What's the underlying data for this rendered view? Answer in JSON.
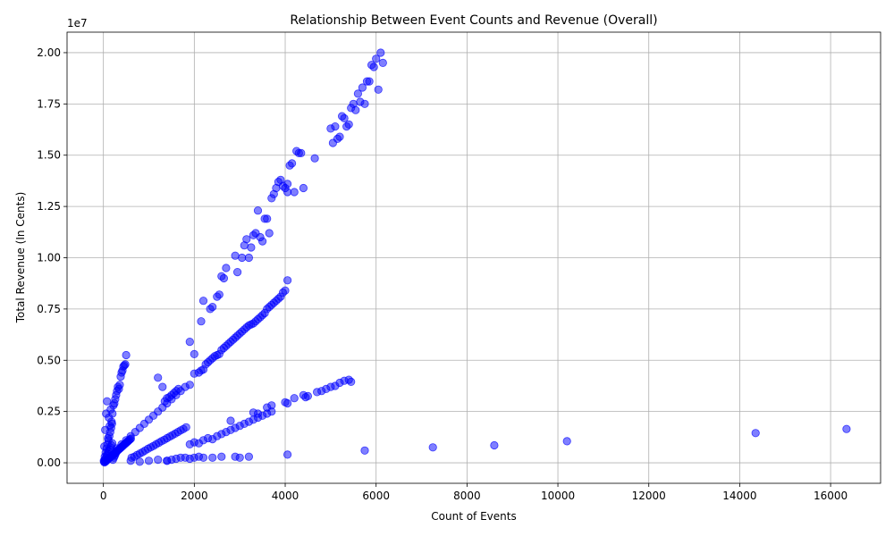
{
  "chart_data": {
    "type": "scatter",
    "title": "Relationship Between Event Counts and Revenue (Overall)",
    "xlabel": "Count of Events",
    "ylabel": "Total Revenue (In Cents)",
    "y_offset_text": "1e7",
    "xlim": [
      -800,
      17100
    ],
    "ylim": [
      -1000000,
      21000000
    ],
    "xticks": [
      0,
      2000,
      4000,
      6000,
      8000,
      10000,
      12000,
      14000,
      16000
    ],
    "xtick_labels": [
      "0",
      "2000",
      "4000",
      "6000",
      "8000",
      "10000",
      "12000",
      "14000",
      "16000"
    ],
    "yticks": [
      0,
      2500000,
      5000000,
      7500000,
      10000000,
      12500000,
      15000000,
      17500000,
      20000000
    ],
    "ytick_labels": [
      "0.00",
      "0.25",
      "0.50",
      "0.75",
      "1.00",
      "1.25",
      "1.50",
      "1.75",
      "2.00"
    ],
    "grid": true,
    "marker_color": "#0000ff",
    "marker_alpha": 0.5,
    "series": [
      {
        "x": [
          20,
          40,
          60,
          80,
          100,
          120,
          140,
          160,
          180,
          200,
          220,
          240,
          260,
          280,
          300,
          320,
          340,
          360,
          380,
          400,
          420,
          440,
          460,
          480,
          500,
          10,
          30,
          50,
          70,
          90,
          110,
          130,
          150,
          170,
          190,
          210,
          230,
          250,
          270,
          290,
          15,
          35,
          55,
          75,
          95,
          115,
          135,
          155,
          175,
          195,
          25,
          45,
          65,
          85,
          105,
          125,
          145,
          165,
          185,
          205,
          225,
          245,
          265,
          285,
          305,
          325,
          345,
          365,
          385,
          405,
          425,
          445,
          465,
          485,
          505,
          525,
          545,
          565,
          585,
          605,
          300,
          400,
          500,
          600,
          700,
          800,
          900,
          1000,
          1100,
          1200,
          1300,
          1400,
          1500,
          1600,
          1700,
          1800,
          620,
          680,
          740,
          800,
          860,
          920,
          980,
          1040,
          1100,
          1160,
          1220,
          1280,
          1340,
          1400,
          1460,
          1520,
          1580,
          1640,
          1700,
          1760,
          1820,
          1200,
          1300,
          1350,
          1400,
          1450,
          1500,
          1550,
          1600,
          1650,
          1900,
          2000,
          1900,
          2000,
          2100,
          2150,
          2200,
          2250,
          2300,
          2350,
          2400,
          2450,
          2500,
          2550,
          2600,
          2650,
          2700,
          2750,
          2800,
          2850,
          2900,
          2950,
          3000,
          3050,
          3100,
          3150,
          3200,
          3250,
          3300,
          3350,
          3400,
          3450,
          3500,
          3550,
          3600,
          3650,
          3700,
          3750,
          3800,
          3850,
          3900,
          3950,
          4000,
          4050,
          2150,
          2200,
          2350,
          2400,
          2500,
          2550,
          2600,
          2650,
          2700,
          2900,
          2950,
          3050,
          3100,
          3150,
          3200,
          3250,
          3300,
          3350,
          3400,
          3450,
          3500,
          3550,
          3600,
          3650,
          3700,
          3750,
          3800,
          3850,
          3900,
          3950,
          4000,
          4050,
          4100,
          4150,
          4200,
          4250,
          4300,
          4350,
          4400,
          5000,
          5050,
          5100,
          5150,
          5200,
          5250,
          5300,
          5350,
          5400,
          5450,
          5500,
          5550,
          5600,
          5650,
          5700,
          5750,
          5800,
          5850,
          5900,
          5950,
          6000,
          6050,
          6100,
          6150,
          4650,
          4050,
          2800,
          3300,
          3400,
          3600,
          3700,
          4000,
          4050,
          4200,
          4400,
          4450,
          4500,
          4700,
          4800,
          4900,
          5000,
          5100,
          5200,
          5300,
          5400,
          5450,
          1900,
          2000,
          2100,
          2200,
          2300,
          2400,
          2500,
          2600,
          2700,
          2800,
          2900,
          3000,
          3100,
          3200,
          3300,
          3400,
          3500,
          3600,
          3700,
          1400,
          1500,
          1600,
          1700,
          1800,
          1900,
          2000,
          2100,
          2200,
          2400,
          2600,
          2900,
          3000,
          3200,
          4050,
          5750,
          7250,
          8600,
          10200,
          14350,
          16350,
          600,
          800,
          1000,
          1200,
          1400
        ],
        "y": [
          800000,
          1600000,
          2400000,
          3000000,
          1200000,
          2200000,
          1800000,
          2600000,
          2000000,
          2400000,
          2800000,
          2900000,
          3100000,
          3300000,
          3500000,
          3700000,
          3600000,
          3800000,
          4200000,
          4400000,
          4500000,
          4700000,
          4750000,
          4800000,
          5250000,
          100000,
          300000,
          500000,
          700000,
          900000,
          1100000,
          1300000,
          1500000,
          1700000,
          1900000,
          150000,
          250000,
          350000,
          450000,
          550000,
          50000,
          150000,
          250000,
          350000,
          450000,
          550000,
          650000,
          750000,
          850000,
          950000,
          20000,
          60000,
          100000,
          140000,
          180000,
          220000,
          260000,
          300000,
          340000,
          380000,
          420000,
          460000,
          500000,
          540000,
          580000,
          620000,
          660000,
          700000,
          740000,
          780000,
          820000,
          860000,
          900000,
          940000,
          980000,
          1020000,
          1060000,
          1100000,
          1140000,
          1180000,
          700000,
          900000,
          1100000,
          1300000,
          1500000,
          1700000,
          1900000,
          2100000,
          2300000,
          2500000,
          2700000,
          2900000,
          3100000,
          3300000,
          3500000,
          3700000,
          250000,
          300000,
          380000,
          450000,
          520000,
          600000,
          680000,
          750000,
          820000,
          900000,
          980000,
          1050000,
          1120000,
          1200000,
          1280000,
          1350000,
          1420000,
          1500000,
          1580000,
          1650000,
          1730000,
          4150000,
          3700000,
          3000000,
          3150000,
          3200000,
          3300000,
          3400000,
          3500000,
          3600000,
          3800000,
          4350000,
          5900000,
          5300000,
          4400000,
          4500000,
          4550000,
          4800000,
          4900000,
          5000000,
          5100000,
          5200000,
          5250000,
          5300000,
          5500000,
          5600000,
          5700000,
          5800000,
          5900000,
          6000000,
          6100000,
          6200000,
          6300000,
          6400000,
          6500000,
          6600000,
          6700000,
          6750000,
          6800000,
          6900000,
          7000000,
          7100000,
          7200000,
          7300000,
          7500000,
          7600000,
          7700000,
          7800000,
          7900000,
          8000000,
          8100000,
          8300000,
          8400000,
          8900000,
          6900000,
          7900000,
          7500000,
          7600000,
          8100000,
          8200000,
          9100000,
          9000000,
          9500000,
          10100000,
          9300000,
          10000000,
          10600000,
          10900000,
          10000000,
          10500000,
          11100000,
          11200000,
          12300000,
          11000000,
          10800000,
          11900000,
          11900000,
          11200000,
          12900000,
          13100000,
          13400000,
          13700000,
          13800000,
          13500000,
          13400000,
          13600000,
          14500000,
          14600000,
          13200000,
          15200000,
          15100000,
          15100000,
          13400000,
          16300000,
          15600000,
          16400000,
          15800000,
          15900000,
          16900000,
          16800000,
          16400000,
          16500000,
          17300000,
          17500000,
          17200000,
          18000000,
          17600000,
          18300000,
          17500000,
          18600000,
          18600000,
          19400000,
          19300000,
          19700000,
          18200000,
          20000000,
          19500000,
          14850000,
          13200000,
          2050000,
          2450000,
          2400000,
          2700000,
          2800000,
          2950000,
          2900000,
          3150000,
          3300000,
          3200000,
          3250000,
          3450000,
          3500000,
          3600000,
          3700000,
          3750000,
          3900000,
          4000000,
          4050000,
          3950000,
          900000,
          1000000,
          950000,
          1100000,
          1200000,
          1150000,
          1300000,
          1400000,
          1500000,
          1600000,
          1700000,
          1800000,
          1900000,
          2000000,
          2100000,
          2200000,
          2300000,
          2400000,
          2500000,
          100000,
          150000,
          200000,
          250000,
          250000,
          200000,
          250000,
          300000,
          250000,
          250000,
          300000,
          300000,
          250000,
          300000,
          400000,
          600000,
          750000,
          850000,
          1050000,
          1450000,
          1650000,
          100000,
          50000,
          100000,
          150000,
          100000
        ]
      }
    ]
  }
}
